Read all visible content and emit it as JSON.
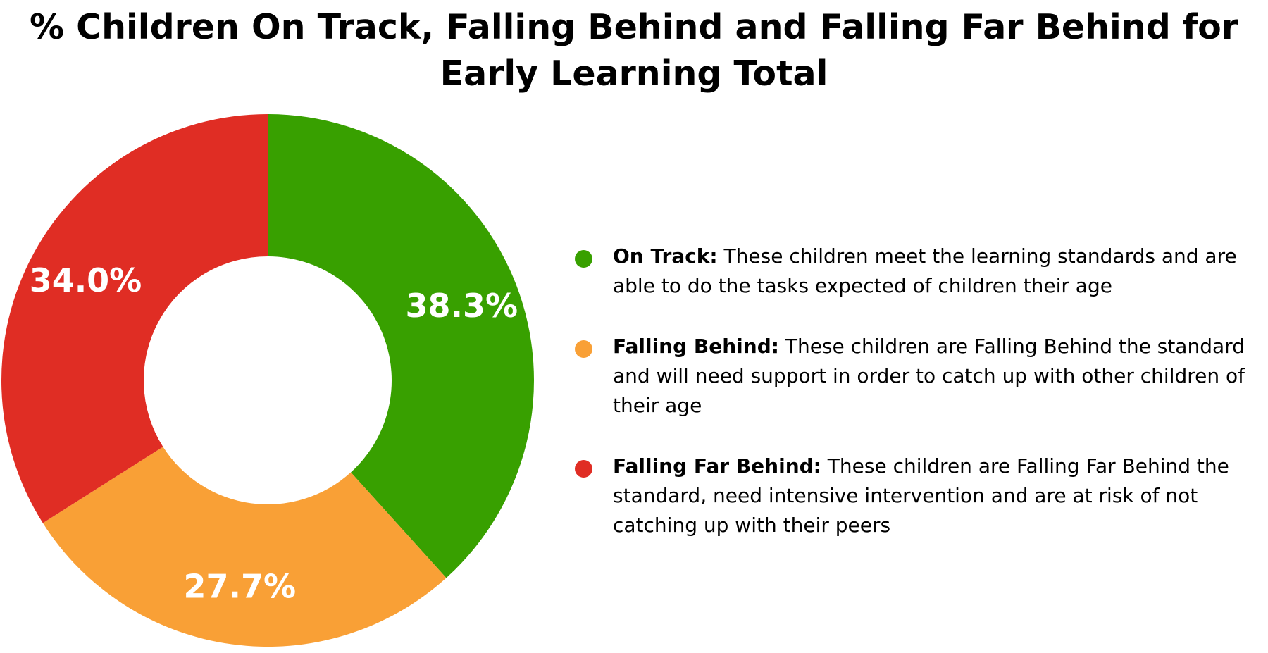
{
  "chart_data": {
    "type": "pie",
    "variant": "donut",
    "title": "% Children On Track, Falling Behind and Falling Far Behind for Early Learning Total",
    "slices": [
      {
        "name": "On Track",
        "value": 38.3,
        "label": "38.3%",
        "color": "#38a000"
      },
      {
        "name": "Falling Behind",
        "value": 27.7,
        "label": "27.7%",
        "color": "#f9a036"
      },
      {
        "name": "Falling Far Behind",
        "value": 34.0,
        "label": "34.0%",
        "color": "#e02d24"
      }
    ],
    "start_angle_deg": 0,
    "direction": "clockwise",
    "legend_position": "right"
  },
  "legend": {
    "items": [
      {
        "term": "On Track:",
        "description": "These children meet the learning standards and are able to do the tasks expected of children their age",
        "color": "#38a000"
      },
      {
        "term": "Falling Behind:",
        "description": "These children are Falling Behind the standard and will need support in order to catch up with other children of their age",
        "color": "#f9a036"
      },
      {
        "term": "Falling Far Behind:",
        "description": "These children are Falling Far Behind the standard, need intensive intervention and are at risk of not catching up with their peers",
        "color": "#e02d24"
      }
    ]
  }
}
